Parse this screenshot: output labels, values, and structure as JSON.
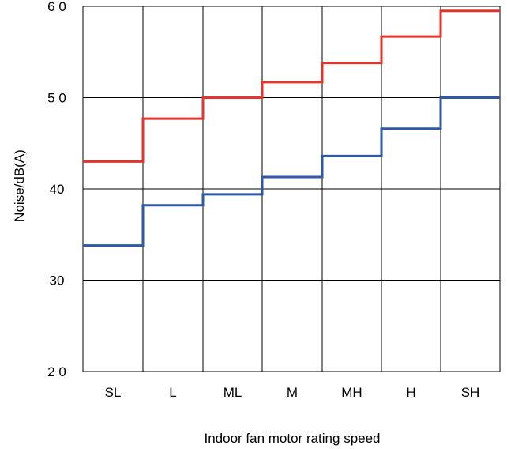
{
  "chart_data": {
    "type": "line",
    "line_shape": "step",
    "xlabel": "Indoor fan motor rating speed",
    "ylabel": "Noise/dB(A)",
    "categories": [
      "SL",
      "L",
      "ML",
      "M",
      "MH",
      "H",
      "SH"
    ],
    "ylim": [
      20,
      60
    ],
    "yticks": [
      {
        "value": 20,
        "label": "2 0"
      },
      {
        "value": 30,
        "label": "30"
      },
      {
        "value": 40,
        "label": "40"
      },
      {
        "value": 50,
        "label": "5 0"
      },
      {
        "value": 60,
        "label": "6 0"
      }
    ],
    "grid": true,
    "series": [
      {
        "color": "#e3352b",
        "values": [
          43.0,
          47.7,
          50.0,
          51.7,
          53.8,
          56.7,
          59.5
        ]
      },
      {
        "color": "#2f5aa3",
        "values": [
          33.8,
          38.2,
          39.4,
          41.3,
          43.6,
          46.6,
          50.0
        ]
      }
    ]
  }
}
